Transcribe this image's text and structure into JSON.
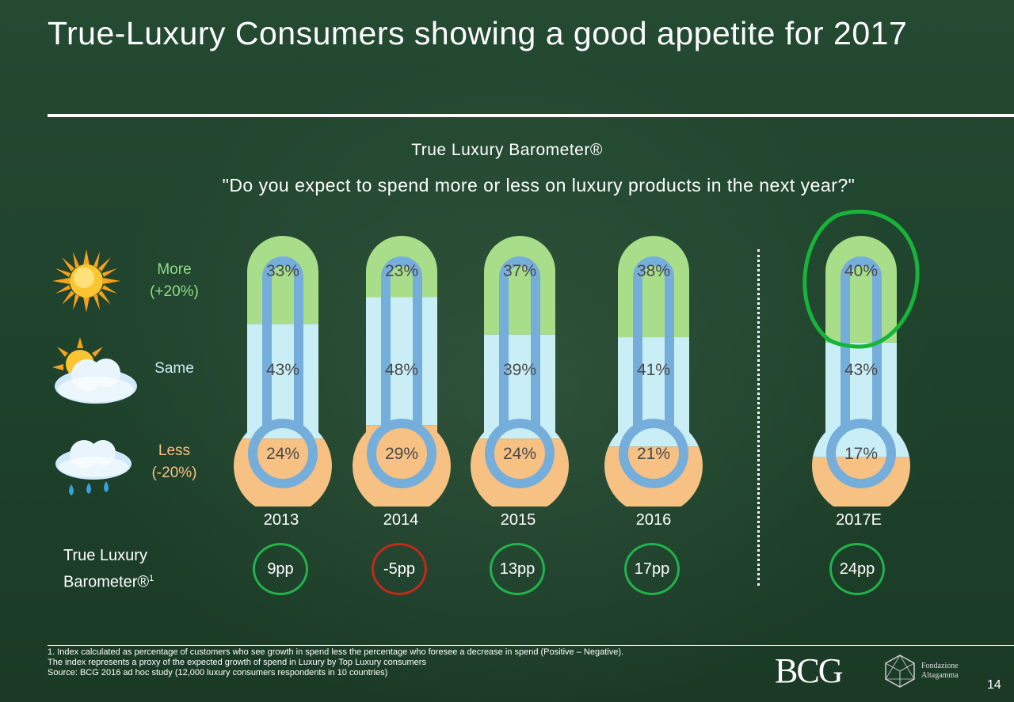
{
  "title": "True-Luxury Consumers showing a good appetite for 2017",
  "subtitle": "True Luxury Barometer®",
  "question": "\"Do you expect to spend more or less on luxury products in the next year?\"",
  "legend": {
    "more_label": "More",
    "more_sub": "(+20%)",
    "same_label": "Same",
    "less_label": "Less",
    "less_sub": "(-20%)"
  },
  "index_label_line1": "True Luxury",
  "index_label_line2": "Barometer®",
  "index_label_sup": "1",
  "chart_data": {
    "type": "bar",
    "categories": [
      "2013",
      "2014",
      "2015",
      "2016",
      "2017E"
    ],
    "series": [
      {
        "name": "More",
        "values": [
          33,
          23,
          37,
          38,
          40
        ],
        "color": "#a8dd8a"
      },
      {
        "name": "Same",
        "values": [
          43,
          48,
          39,
          41,
          43
        ],
        "color": "#c9eef5"
      },
      {
        "name": "Less",
        "values": [
          24,
          29,
          24,
          21,
          17
        ],
        "color": "#f6c182"
      }
    ],
    "value_labels": {
      "More": [
        "33%",
        "23%",
        "37%",
        "38%",
        "40%"
      ],
      "Same": [
        "43%",
        "48%",
        "39%",
        "41%",
        "43%"
      ],
      "Less": [
        "24%",
        "29%",
        "24%",
        "21%",
        "17%"
      ]
    },
    "index": [
      "9pp",
      "-5pp",
      "13pp",
      "17pp",
      "24pp"
    ],
    "index_values": [
      9,
      -5,
      13,
      17,
      24
    ],
    "highlighted_category": "2017E",
    "tube_color": "#76aedb"
  },
  "colors": {
    "positive_ring": "#22b24c",
    "negative_ring": "#c12a1c",
    "highlight_circle": "#17b43a"
  },
  "footnote": {
    "line1": "1. Index calculated as percentage of customers who see growth in spend less the percentage who foresee a decrease in spend (Positive – Negative).",
    "line2": "The index represents a proxy of the expected growth of spend in Luxury by Top Luxury consumers",
    "line3": "Source: BCG 2016 ad hoc study (12,000 luxury consumers respondents in 10 countries)"
  },
  "logos": {
    "bcg": "BCG",
    "fondazione_line1": "Fondazione",
    "fondazione_line2": "Altagamma"
  },
  "page_number": "14"
}
